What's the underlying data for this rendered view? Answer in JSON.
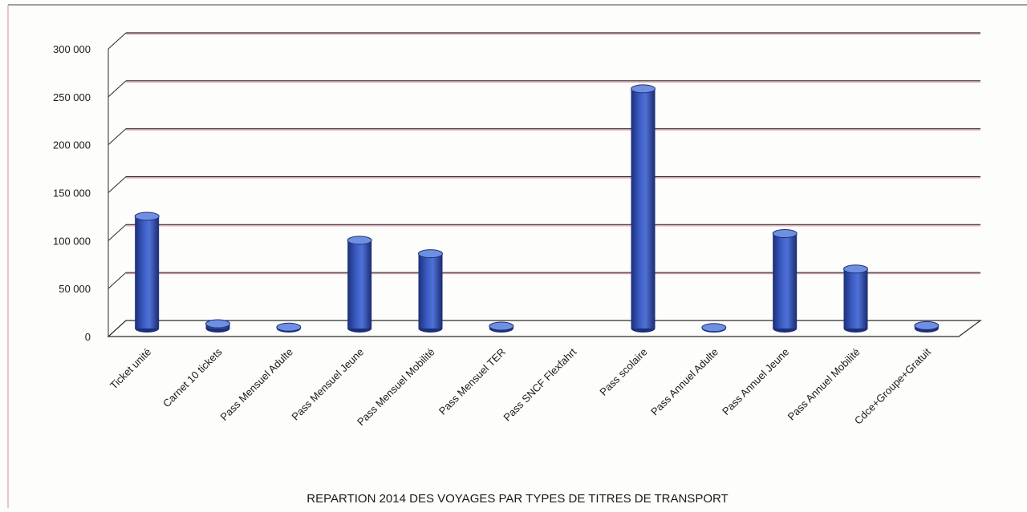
{
  "chart_data": {
    "type": "bar",
    "title": "REPARTION 2014  DES VOYAGES PAR TYPES DE TITRES DE TRANSPORT",
    "xlabel": "",
    "ylabel": "",
    "ylim": [
      0,
      300000
    ],
    "yticks": [
      "300 000",
      "250 000",
      "200 000",
      "150 000",
      "100 000",
      "50 000",
      "0"
    ],
    "ytick_values": [
      300000,
      250000,
      200000,
      150000,
      100000,
      50000,
      0
    ],
    "grid": true,
    "style": "3d-cylinder",
    "categories": [
      "Ticket unité",
      "Carnet 10 tickets",
      "Pass Mensuel Adulte",
      "Pass Mensuel Jeune",
      "Pass Mensuel Mobilité",
      "Pass Mensuel TER",
      "Pass SNCF Flexfahrt",
      "Pass  scolaire",
      "Pass Annuel Adulte",
      "Pass Annuel Jeune",
      "Pass Annuel Mobilité",
      "Cdce+Groupe+Gratuit"
    ],
    "values": [
      117000,
      5000,
      1500,
      92000,
      78000,
      2500,
      0,
      250000,
      1000,
      99000,
      62000,
      3000
    ]
  },
  "colors": {
    "bar": "#2e4fb0",
    "bar_dark": "#1c2f78",
    "bar_light": "#6f8fe0",
    "gridline": "#2b2b2b",
    "gridline_shadow": "#d98c9c",
    "text": "#1a1a1a"
  }
}
